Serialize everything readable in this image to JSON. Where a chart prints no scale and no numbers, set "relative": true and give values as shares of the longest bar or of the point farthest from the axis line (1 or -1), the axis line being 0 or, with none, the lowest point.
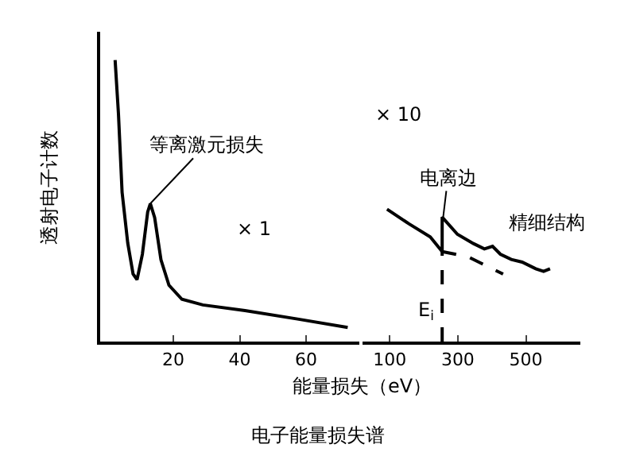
{
  "chart_data": [
    {
      "type": "line",
      "relative": true,
      "xlabel": "能量损失（eV）",
      "ylabel": "透射电子计数",
      "xlim": [
        -2,
        76
      ],
      "xticks": [
        20,
        40,
        60
      ],
      "tick_labels": "x",
      "series": [
        {
          "color": "#000000",
          "line_style": "solid",
          "x": [
            2.5,
            3.5,
            4.6,
            6.3,
            7.9,
            9.1,
            10.7,
            12.3,
            13.1,
            14.4,
            16.3,
            18.7,
            22.6,
            28.9,
            41.6,
            57.4,
            72.5
          ],
          "values": [
            1.0,
            0.81,
            0.53,
            0.35,
            0.24,
            0.22,
            0.31,
            0.46,
            0.49,
            0.44,
            0.29,
            0.2,
            0.15,
            0.13,
            0.11,
            0.08,
            0.05
          ]
        }
      ],
      "annotations": [
        {
          "text": "等离激元损失",
          "x": 13.1,
          "y": 0.49
        },
        "× 1",
        "电子能量损失谱"
      ]
    },
    {
      "type": "line",
      "relative": true,
      "xlim": [
        20,
        660
      ],
      "xticks": [
        100,
        300,
        500
      ],
      "tick_labels": "x",
      "series": [
        {
          "color": "#000000",
          "line_style": "solid",
          "x": [
            92,
            156,
            219,
            254,
            254,
            299,
            346,
            378,
            402,
            425,
            457,
            489,
            529,
            552,
            571
          ],
          "values": [
            1.0,
            0.89,
            0.79,
            0.68,
            0.94,
            0.81,
            0.74,
            0.7,
            0.72,
            0.66,
            0.62,
            0.6,
            0.55,
            0.53,
            0.55
          ]
        },
        {
          "color": "#000000",
          "line_style": "dashed",
          "x": [
            254,
            330,
            433
          ],
          "values": [
            0.68,
            0.64,
            0.51
          ]
        },
        {
          "color": "#000000",
          "line_style": "dashed",
          "x": [
            254,
            254
          ],
          "values": [
            0,
            0.68
          ]
        }
      ],
      "annotations": [
        "× 10",
        {
          "text": "电离边",
          "x": 257,
          "y": 0.94
        },
        {
          "text": "精细结构",
          "x": 402,
          "y": 0.72
        },
        {
          "text": "E$_{i}$",
          "x": 254,
          "y": 0
        }
      ]
    }
  ]
}
